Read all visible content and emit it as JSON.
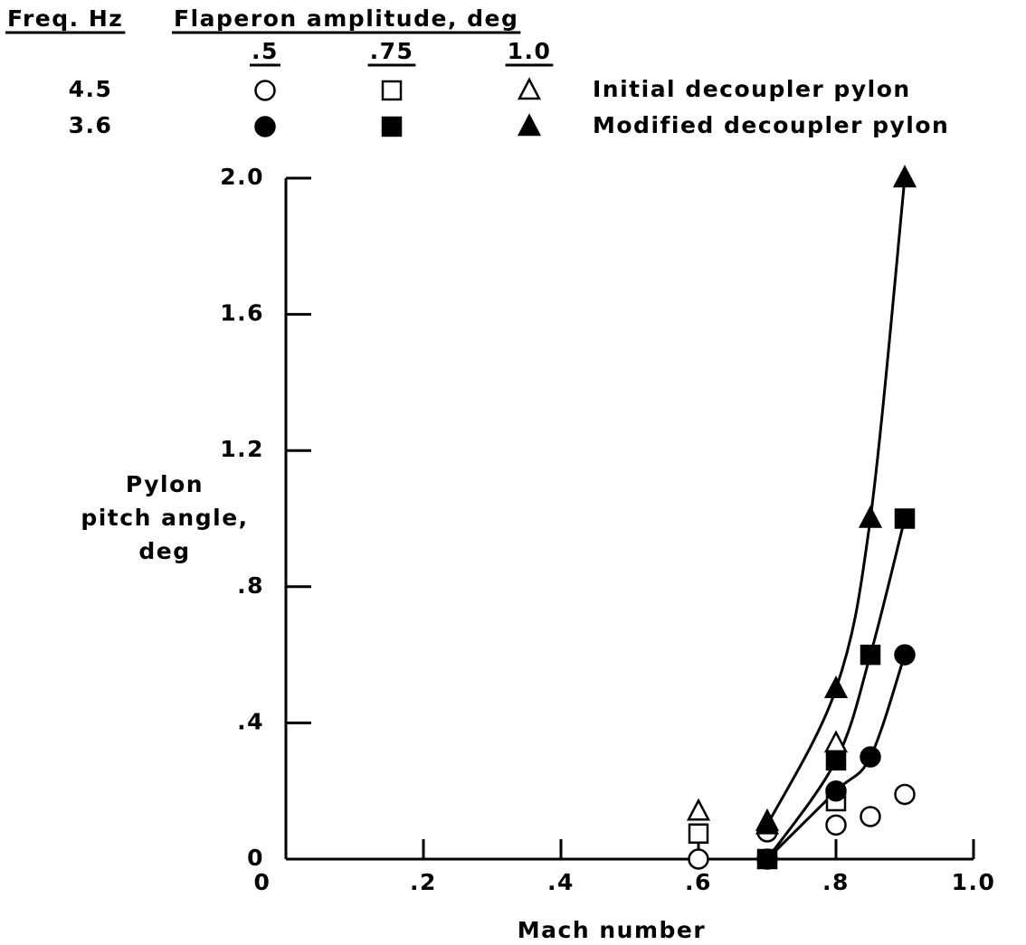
{
  "chart_data": {
    "type": "scatter",
    "legend": {
      "freq_header": "Freq. Hz",
      "amplitude_header": "Flaperon amplitude, deg",
      "amplitudes": [
        ".5",
        ".75",
        "1.0"
      ]
    },
    "markers": [
      "circle",
      "square",
      "triangle"
    ],
    "groups": [
      {
        "freq": "4.5",
        "name": "Initial decoupler pylon",
        "color": "#000000",
        "filled": false,
        "fit": false,
        "series": [
          {
            "x": [
              0.6,
              0.7,
              0.8,
              0.85,
              0.9
            ],
            "values": [
              0.0,
              0.08,
              0.1,
              0.125,
              0.19
            ]
          },
          {
            "x": [
              0.6,
              0.8
            ],
            "values": [
              0.075,
              0.17
            ]
          },
          {
            "x": [
              0.6,
              0.7,
              0.8
            ],
            "values": [
              0.14,
              0.11,
              0.34
            ]
          }
        ]
      },
      {
        "freq": "3.6",
        "name": "Modified decoupler pylon",
        "color": "#000000",
        "filled": true,
        "fit": true,
        "series": [
          {
            "x": [
              0.7,
              0.8,
              0.85,
              0.9
            ],
            "values": [
              0.0,
              0.2,
              0.3,
              0.6
            ]
          },
          {
            "x": [
              0.7,
              0.8,
              0.85,
              0.9
            ],
            "values": [
              0.0,
              0.29,
              0.6,
              1.0
            ]
          },
          {
            "x": [
              0.7,
              0.8,
              0.85,
              0.9
            ],
            "values": [
              0.1,
              0.5,
              1.0,
              2.0
            ]
          }
        ]
      }
    ],
    "xlabel": "Mach number",
    "ylabel": [
      "Pylon",
      "pitch angle,",
      "deg"
    ],
    "xlim": [
      0,
      1.0
    ],
    "ylim": [
      0,
      2.0
    ],
    "xticks": [
      0,
      {
        "value": 0.2,
        "label": ".2"
      },
      {
        "value": 0.4,
        "label": ".4"
      },
      {
        "value": 0.6,
        "label": ".6"
      },
      {
        "value": 0.8,
        "label": ".8"
      },
      {
        "value": 1.0,
        "label": "1.0"
      }
    ],
    "yticks": [
      0,
      {
        "value": 0.4,
        "label": ".4"
      },
      {
        "value": 0.8,
        "label": ".8"
      },
      {
        "value": 1.2,
        "label": "1.2"
      },
      {
        "value": 1.6,
        "label": "1.6"
      },
      {
        "value": 2.0,
        "label": "2.0"
      }
    ]
  }
}
